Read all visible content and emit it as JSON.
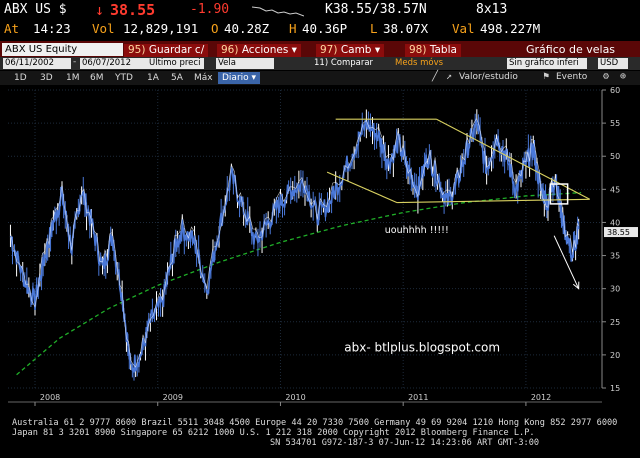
{
  "header": {
    "ticker": "ABX US $",
    "arrow": "↓",
    "last_price": "38.55",
    "change": "-1.90",
    "bid_ask": "K38.55/38.57N",
    "size": "8x13",
    "at_label": "At",
    "time": "14:23",
    "vol_label": "Vol",
    "volume": "12,829,191",
    "open_label": "O",
    "open": "40.28Z",
    "high_label": "H",
    "high": "40.36P",
    "low_label": "L",
    "low": "38.07X",
    "val_label": "Val",
    "value": "498.227M"
  },
  "toolbar": {
    "security": "ABX US Equity",
    "save": {
      "num": "95)",
      "label": "Guardar c/"
    },
    "actions": {
      "num": "96)",
      "label": "Acciones"
    },
    "change": {
      "num": "97)",
      "label": "Camb"
    },
    "table": {
      "num": "98)",
      "label": "Tabla"
    },
    "title": "Gráfico de velas"
  },
  "fields": {
    "start_date": "06/11/2002",
    "end_date": "06/07/2012",
    "price_field": "Último preci",
    "chart_style": "Vela",
    "compare": "11) Comparar",
    "moving_avg": "Meds móvs",
    "no_chart": "Sin gráfico inferi",
    "currency": "USD"
  },
  "periods": [
    "1D",
    "3D",
    "1M",
    "6M",
    "YTD",
    "1A",
    "5A",
    "Máx"
  ],
  "period_selected": "Diario",
  "tools": {
    "value_study": "Valor/estudio",
    "event": "Evento"
  },
  "colors": {
    "price": "#4a78d8",
    "price_highlight": "#ffffff",
    "trendlines": "#d8d060",
    "moving_average": "#1fae28",
    "projection": "#ffffff",
    "toolbar_red": "#8b0c0c",
    "header_orange": "#f7a21b"
  },
  "chart_data": {
    "type": "line",
    "x_axis": {
      "ticks": [
        "2008",
        "2009",
        "2010",
        "2011",
        "2012"
      ]
    },
    "y_axis": {
      "range": [
        15,
        60
      ],
      "ticks": [
        15,
        20,
        25,
        30,
        35,
        40,
        45,
        50,
        55,
        60
      ],
      "side": "right"
    },
    "last_price_label": "38.55",
    "grid": true,
    "series": [
      {
        "x": [
          2007.8,
          2007.9,
          2008.0,
          2008.08,
          2008.15,
          2008.22,
          2008.3,
          2008.38,
          2008.46,
          2008.55,
          2008.63,
          2008.71,
          2008.78,
          2008.86,
          2008.94,
          2009.04,
          2009.12,
          2009.2,
          2009.3,
          2009.4,
          2009.5,
          2009.6,
          2009.7,
          2009.8,
          2009.9,
          2010.0,
          2010.1,
          2010.2,
          2010.3,
          2010.4,
          2010.5,
          2010.6,
          2010.7,
          2010.8,
          2010.88,
          2010.96,
          2011.04,
          2011.12,
          2011.2,
          2011.28,
          2011.36,
          2011.44,
          2011.52,
          2011.6,
          2011.68,
          2011.76,
          2011.84,
          2011.92,
          2012.0,
          2012.06,
          2012.12,
          2012.18,
          2012.24,
          2012.3,
          2012.38,
          2012.43
        ],
        "y": [
          38,
          32,
          28,
          35,
          40,
          44,
          36,
          45,
          40,
          33,
          38,
          29,
          18,
          20,
          25,
          28,
          35,
          39,
          37,
          30,
          39,
          47,
          42,
          37,
          40,
          43,
          45,
          46,
          41,
          43,
          47,
          51,
          55,
          53,
          49,
          52,
          48,
          45,
          50,
          47,
          43,
          46,
          51,
          55,
          48,
          53,
          50,
          45,
          49,
          51,
          45,
          43,
          47,
          40,
          35,
          39
        ]
      }
    ],
    "moving_average": {
      "x": [
        2007.85,
        2008.2,
        2008.6,
        2009.0,
        2009.5,
        2010.0,
        2010.5,
        2011.0,
        2011.5,
        2012.0,
        2012.45
      ],
      "y": [
        17,
        22.5,
        27,
        30.5,
        34,
        37,
        39.5,
        41.5,
        43,
        44,
        44.5
      ]
    },
    "trendlines": [
      {
        "x": [
          2010.45,
          2011.27
        ],
        "y": [
          55.6,
          55.6
        ]
      },
      {
        "x": [
          2011.27,
          2012.52
        ],
        "y": [
          55.6,
          43.5
        ]
      },
      {
        "x": [
          2010.38,
          2010.95
        ],
        "y": [
          47.6,
          43.0
        ]
      },
      {
        "x": [
          2010.95,
          2012.52
        ],
        "y": [
          43.0,
          43.5
        ]
      }
    ],
    "projection_arrow": {
      "from": [
        2012.23,
        38
      ],
      "to": [
        2012.43,
        30
      ]
    },
    "highlight_box": {
      "x": [
        2012.2,
        2012.34
      ],
      "y": [
        42.8,
        45.8
      ]
    },
    "annotations": [
      {
        "text": "uouhhhh !!!!!",
        "x": 2010.85,
        "y": 38.4
      },
      {
        "text": "abx- btlplus.blogspot.com",
        "x": 2010.52,
        "y": 20.5
      }
    ]
  },
  "footer": {
    "line1": "Australia 61 2 9777 8600 Brazil 5511 3048 4500 Europe 44 20 7330 7500 Germany 49 69 9204 1210 Hong Kong 852 2977 6000",
    "line2": "Japan 81 3 3201 8900        Singapore 65 6212 1000         U.S. 1 212 318 2000          Copyright 2012 Bloomberg Finance L.P.",
    "line3": "SN 534701 G972-187-3 07-Jun-12 14:23:06 ART  GMT-3:00"
  }
}
